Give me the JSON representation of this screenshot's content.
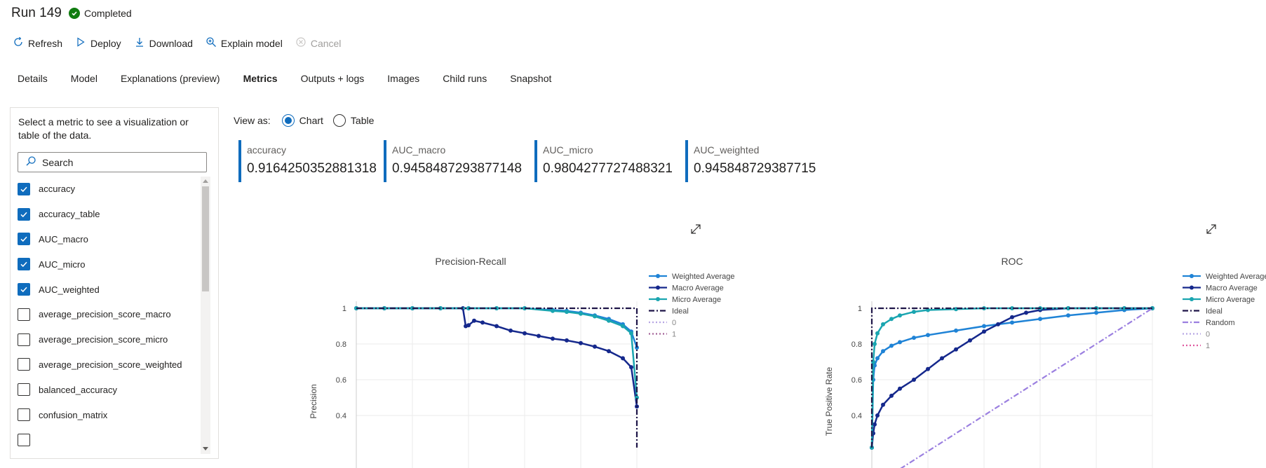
{
  "header": {
    "title": "Run 149",
    "status": "Completed",
    "status_color": "#107c10"
  },
  "toolbar": {
    "refresh": "Refresh",
    "deploy": "Deploy",
    "download": "Download",
    "explain": "Explain model",
    "cancel": "Cancel"
  },
  "tabs": [
    {
      "label": "Details"
    },
    {
      "label": "Model"
    },
    {
      "label": "Explanations (preview)"
    },
    {
      "label": "Metrics",
      "active": true
    },
    {
      "label": "Outputs + logs"
    },
    {
      "label": "Images"
    },
    {
      "label": "Child runs"
    },
    {
      "label": "Snapshot"
    }
  ],
  "left_panel": {
    "description": "Select a metric to see a visualization or table of the data.",
    "search_placeholder": "Search",
    "metrics": [
      {
        "name": "accuracy",
        "checked": true
      },
      {
        "name": "accuracy_table",
        "checked": true
      },
      {
        "name": "AUC_macro",
        "checked": true
      },
      {
        "name": "AUC_micro",
        "checked": true
      },
      {
        "name": "AUC_weighted",
        "checked": true
      },
      {
        "name": "average_precision_score_macro",
        "checked": false
      },
      {
        "name": "average_precision_score_micro",
        "checked": false
      },
      {
        "name": "average_precision_score_weighted",
        "checked": false
      },
      {
        "name": "balanced_accuracy",
        "checked": false
      },
      {
        "name": "confusion_matrix",
        "checked": false
      }
    ]
  },
  "view_as": {
    "label": "View as:",
    "chart": "Chart",
    "table": "Table",
    "selected": "Chart"
  },
  "cards": [
    {
      "name": "accuracy",
      "value": "0.9164250352881318"
    },
    {
      "name": "AUC_macro",
      "value": "0.9458487293877148"
    },
    {
      "name": "AUC_micro",
      "value": "0.9804277727488321"
    },
    {
      "name": "AUC_weighted",
      "value": "0.945848729387715"
    }
  ],
  "colors": {
    "accent": "#0f6cbd",
    "weighted": "#1f83d6",
    "macro": "#15288c",
    "micro": "#1aa5b0",
    "ideal": "#1e1548",
    "random": "#9b7fe0",
    "zero": "#b7a6e4",
    "one": "#a56399",
    "one_roc": "#e05aa0"
  },
  "chart_data": [
    {
      "type": "line",
      "title": "Precision-Recall",
      "xlabel": "",
      "ylabel": "Precision",
      "yticks": [
        "1",
        "0.8",
        "0.6",
        "0.4"
      ],
      "ylim": [
        0.22,
        1.06
      ],
      "xlim": [
        0,
        1
      ],
      "grid": true,
      "legend": [
        "Weighted Average",
        "Macro Average",
        "Micro Average",
        "Ideal",
        "0",
        "1"
      ],
      "series": [
        {
          "name": "Weighted Average",
          "x": [
            0,
            0.1,
            0.2,
            0.3,
            0.4,
            0.5,
            0.6,
            0.7,
            0.75,
            0.8,
            0.85,
            0.9,
            0.95,
            0.98,
            1.0
          ],
          "y": [
            1,
            1,
            1,
            1,
            1,
            1,
            1,
            0.99,
            0.985,
            0.975,
            0.96,
            0.94,
            0.91,
            0.87,
            0.78
          ]
        },
        {
          "name": "Macro Average",
          "x": [
            0,
            0.1,
            0.2,
            0.3,
            0.38,
            0.39,
            0.4,
            0.42,
            0.45,
            0.5,
            0.55,
            0.6,
            0.65,
            0.7,
            0.75,
            0.8,
            0.85,
            0.9,
            0.95,
            0.98,
            1.0
          ],
          "y": [
            1,
            1,
            1,
            1,
            1,
            0.9,
            0.905,
            0.93,
            0.92,
            0.9,
            0.875,
            0.86,
            0.845,
            0.83,
            0.82,
            0.805,
            0.785,
            0.76,
            0.72,
            0.67,
            0.45
          ]
        },
        {
          "name": "Micro Average",
          "x": [
            0,
            0.1,
            0.2,
            0.3,
            0.4,
            0.5,
            0.6,
            0.7,
            0.75,
            0.8,
            0.85,
            0.9,
            0.95,
            0.98,
            1.0
          ],
          "y": [
            1,
            1,
            1,
            1,
            1,
            1,
            1,
            0.985,
            0.98,
            0.97,
            0.955,
            0.93,
            0.9,
            0.86,
            0.5
          ]
        },
        {
          "name": "Ideal",
          "x": [
            0,
            1,
            1
          ],
          "y": [
            1,
            1,
            0.22
          ]
        }
      ]
    },
    {
      "type": "line",
      "title": "ROC",
      "xlabel": "",
      "ylabel": "True Positive Rate",
      "yticks": [
        "1",
        "0.8",
        "0.6",
        "0.4"
      ],
      "ylim": [
        0.22,
        1.06
      ],
      "xlim": [
        0,
        1
      ],
      "grid": true,
      "legend": [
        "Weighted Average",
        "Macro Average",
        "Micro Average",
        "Ideal",
        "Random",
        "0",
        "1"
      ],
      "series": [
        {
          "name": "Weighted Average",
          "x": [
            0,
            0.005,
            0.01,
            0.02,
            0.04,
            0.07,
            0.1,
            0.15,
            0.2,
            0.3,
            0.4,
            0.5,
            0.6,
            0.7,
            0.8,
            0.9,
            1.0
          ],
          "y": [
            0.22,
            0.6,
            0.68,
            0.72,
            0.76,
            0.79,
            0.81,
            0.835,
            0.85,
            0.875,
            0.9,
            0.92,
            0.94,
            0.96,
            0.975,
            0.99,
            1.0
          ]
        },
        {
          "name": "Macro Average",
          "x": [
            0,
            0.005,
            0.01,
            0.02,
            0.04,
            0.07,
            0.1,
            0.15,
            0.2,
            0.25,
            0.3,
            0.35,
            0.4,
            0.45,
            0.5,
            0.55,
            0.6,
            0.7,
            0.8,
            0.9,
            1.0
          ],
          "y": [
            0.22,
            0.3,
            0.35,
            0.4,
            0.46,
            0.51,
            0.55,
            0.6,
            0.66,
            0.72,
            0.77,
            0.82,
            0.87,
            0.91,
            0.95,
            0.975,
            0.99,
            1.0,
            1.0,
            1.0,
            1.0
          ]
        },
        {
          "name": "Micro Average",
          "x": [
            0,
            0.005,
            0.01,
            0.02,
            0.04,
            0.07,
            0.1,
            0.15,
            0.2,
            0.3,
            0.4,
            0.5,
            0.6,
            0.7,
            0.8,
            0.9,
            1.0
          ],
          "y": [
            0.22,
            0.7,
            0.8,
            0.86,
            0.91,
            0.94,
            0.96,
            0.98,
            0.99,
            0.995,
            1.0,
            1.0,
            1.0,
            1.0,
            1.0,
            1.0,
            1.0
          ]
        },
        {
          "name": "Ideal",
          "x": [
            0,
            0,
            1
          ],
          "y": [
            0.22,
            1,
            1
          ]
        },
        {
          "name": "Random",
          "x": [
            0,
            1
          ],
          "y": [
            0,
            1
          ]
        }
      ]
    }
  ]
}
